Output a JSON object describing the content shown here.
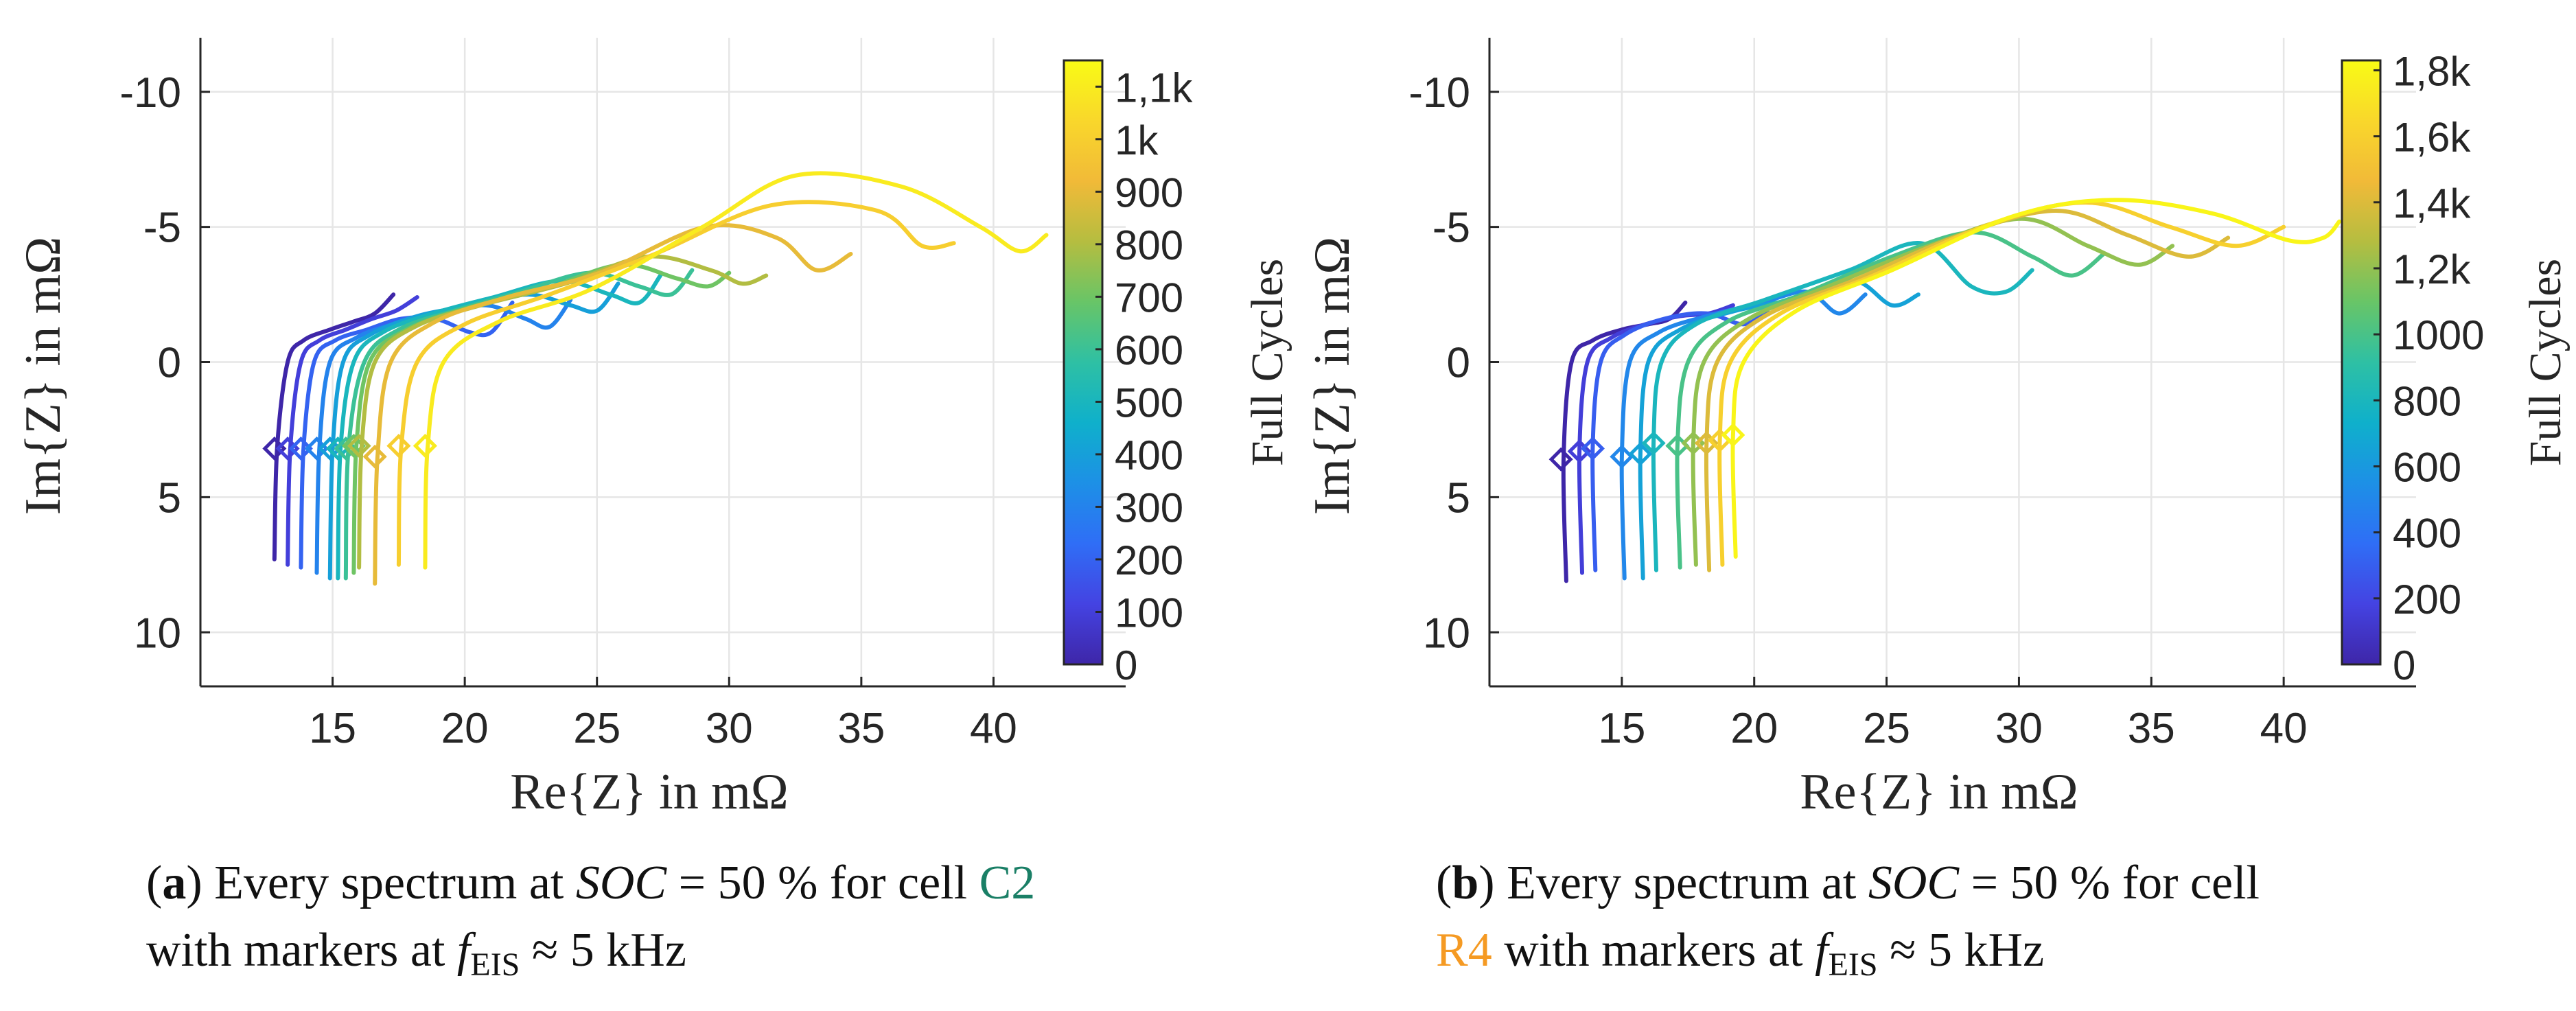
{
  "chart_data": [
    {
      "type": "line",
      "panel_id": "a",
      "xlabel": "Re{Z} in mΩ",
      "ylabel": "Im{Z} in mΩ",
      "xlim": [
        10,
        45
      ],
      "ylim": [
        -12,
        12
      ],
      "y_reversed": true,
      "grid": true,
      "xticks": [
        15,
        20,
        25,
        30,
        35,
        40
      ],
      "yticks": [
        -10,
        -5,
        0,
        5,
        10
      ],
      "xtick_labels": [
        "15",
        "20",
        "25",
        "30",
        "35",
        "40"
      ],
      "ytick_labels": [
        "-10",
        "-5",
        "0",
        "5",
        "10"
      ],
      "colorbar": {
        "label": "Full Cycles",
        "min": 0,
        "max": 1150,
        "ticks": [
          0,
          100,
          200,
          300,
          400,
          500,
          600,
          700,
          800,
          900,
          1000,
          1100
        ],
        "tick_labels": [
          "0",
          "100",
          "200",
          "300",
          "400",
          "500",
          "600",
          "700",
          "800",
          "900",
          "1k",
          "1,1k"
        ]
      },
      "series": [
        {
          "cycles": 0,
          "x": [
            12.8,
            12.9,
            13.3,
            13.9,
            14.9,
            15.8,
            16.6,
            17.3
          ],
          "y": [
            7.3,
            3.2,
            0.0,
            -0.8,
            -1.2,
            -1.5,
            -1.8,
            -2.5
          ],
          "marker": [
            12.8,
            3.2
          ]
        },
        {
          "cycles": 100,
          "x": [
            13.3,
            13.4,
            13.8,
            14.5,
            15.5,
            16.5,
            17.4,
            18.2
          ],
          "y": [
            7.5,
            3.2,
            0.0,
            -0.8,
            -1.2,
            -1.6,
            -1.9,
            -2.4
          ],
          "marker": [
            13.3,
            3.2
          ]
        },
        {
          "cycles": 200,
          "x": [
            13.8,
            13.9,
            14.3,
            15.1,
            16.3,
            17.6,
            18.9,
            20.2,
            21.0,
            21.8
          ],
          "y": [
            7.6,
            3.2,
            0.0,
            -0.8,
            -1.2,
            -1.6,
            -1.6,
            -1.1,
            -1.1,
            -2.2
          ],
          "marker": [
            13.8,
            3.2
          ]
        },
        {
          "cycles": 300,
          "x": [
            14.4,
            14.5,
            14.9,
            15.9,
            17.3,
            19.0,
            20.8,
            22.3,
            23.2,
            24.0
          ],
          "y": [
            7.8,
            3.2,
            0.0,
            -0.9,
            -1.4,
            -1.8,
            -2.1,
            -1.6,
            -1.3,
            -2.3
          ],
          "marker": [
            14.4,
            3.2
          ]
        },
        {
          "cycles": 400,
          "x": [
            14.9,
            15.0,
            15.4,
            16.4,
            18.2,
            20.3,
            22.4,
            24.0,
            25.0,
            25.8
          ],
          "y": [
            8.0,
            3.2,
            0.0,
            -1.0,
            -1.7,
            -2.1,
            -2.5,
            -2.1,
            -1.9,
            -2.9
          ],
          "marker": [
            14.9,
            3.2
          ]
        },
        {
          "cycles": 500,
          "x": [
            15.2,
            15.3,
            15.8,
            16.9,
            18.8,
            21.1,
            23.6,
            25.5,
            26.6,
            27.4
          ],
          "y": [
            8.0,
            3.2,
            0.0,
            -1.1,
            -1.8,
            -2.4,
            -3.0,
            -2.5,
            -2.2,
            -3.2
          ],
          "marker": [
            15.2,
            3.2
          ]
        },
        {
          "cycles": 600,
          "x": [
            15.5,
            15.6,
            16.2,
            17.5,
            19.6,
            22.1,
            24.7,
            26.6,
            27.8,
            28.6
          ],
          "y": [
            8.0,
            3.2,
            0.0,
            -1.2,
            -1.9,
            -2.6,
            -3.3,
            -2.8,
            -2.5,
            -3.4
          ],
          "marker": [
            15.5,
            3.2
          ]
        },
        {
          "cycles": 700,
          "x": [
            15.8,
            15.9,
            16.4,
            17.8,
            20.1,
            23.0,
            25.9,
            28.0,
            29.2,
            30.0
          ],
          "y": [
            7.8,
            3.1,
            0.0,
            -1.2,
            -2.0,
            -2.7,
            -3.6,
            -3.1,
            -2.8,
            -3.3
          ],
          "marker": [
            15.8,
            3.1
          ]
        },
        {
          "cycles": 800,
          "x": [
            16.0,
            16.1,
            16.6,
            18.1,
            20.6,
            23.8,
            26.9,
            29.3,
            30.5,
            31.4
          ],
          "y": [
            7.6,
            3.1,
            0.0,
            -1.3,
            -2.1,
            -2.9,
            -3.9,
            -3.4,
            -2.9,
            -3.2
          ],
          "marker": [
            16.0,
            3.1
          ]
        },
        {
          "cycles": 900,
          "x": [
            16.6,
            16.7,
            17.2,
            18.9,
            21.6,
            25.1,
            29.1,
            31.8,
            33.3,
            34.6
          ],
          "y": [
            8.2,
            3.5,
            0.0,
            -1.5,
            -2.4,
            -3.3,
            -5.0,
            -4.6,
            -3.4,
            -4.0
          ],
          "marker": [
            16.6,
            3.5
          ]
        },
        {
          "cycles": 1000,
          "x": [
            17.5,
            17.6,
            18.2,
            20.0,
            23.2,
            27.2,
            31.6,
            35.6,
            37.3,
            38.5
          ],
          "y": [
            7.5,
            3.1,
            0.0,
            -1.4,
            -2.5,
            -4.0,
            -5.8,
            -5.6,
            -4.3,
            -4.4
          ],
          "marker": [
            17.5,
            3.1
          ]
        },
        {
          "cycles": 1100,
          "x": [
            18.5,
            18.6,
            19.2,
            21.3,
            24.8,
            29.0,
            32.5,
            36.5,
            39.5,
            41.0,
            42.0
          ],
          "y": [
            7.6,
            3.1,
            0.0,
            -1.5,
            -2.7,
            -5.0,
            -6.9,
            -6.5,
            -5.0,
            -4.1,
            -4.7
          ],
          "marker": [
            18.5,
            3.1
          ]
        }
      ]
    },
    {
      "type": "line",
      "panel_id": "b",
      "xlabel": "Re{Z} in mΩ",
      "ylabel": "Im{Z} in mΩ",
      "xlim": [
        10,
        45
      ],
      "ylim": [
        -12,
        12
      ],
      "y_reversed": true,
      "grid": true,
      "xticks": [
        15,
        20,
        25,
        30,
        35,
        40
      ],
      "yticks": [
        -10,
        -5,
        0,
        5,
        10
      ],
      "xtick_labels": [
        "15",
        "20",
        "25",
        "30",
        "35",
        "40"
      ],
      "ytick_labels": [
        "-10",
        "-5",
        "0",
        "5",
        "10"
      ],
      "colorbar": {
        "label": "Full Cycles",
        "min": 0,
        "max": 1830,
        "ticks": [
          0,
          200,
          400,
          600,
          800,
          1000,
          1200,
          1400,
          1600,
          1800
        ],
        "tick_labels": [
          "0",
          "200",
          "400",
          "600",
          "800",
          "1000",
          "1,2k",
          "1,4k",
          "1,6k",
          "1,8k"
        ]
      },
      "series": [
        {
          "cycles": 0,
          "x": [
            12.9,
            12.8,
            13.1,
            13.9,
            15.0,
            16.0,
            16.8,
            17.4
          ],
          "y": [
            8.1,
            3.6,
            0.0,
            -0.8,
            -1.2,
            -1.4,
            -1.6,
            -2.2
          ],
          "marker": [
            12.7,
            3.6
          ]
        },
        {
          "cycles": 150,
          "x": [
            13.5,
            13.4,
            13.7,
            14.6,
            15.9,
            17.2,
            18.3,
            19.2
          ],
          "y": [
            7.8,
            3.3,
            0.0,
            -0.9,
            -1.4,
            -1.7,
            -1.8,
            -2.1
          ],
          "marker": [
            13.4,
            3.3
          ]
        },
        {
          "cycles": 300,
          "x": [
            14.0,
            13.9,
            14.2,
            15.1,
            16.6,
            18.2,
            19.6,
            20.5
          ],
          "y": [
            7.7,
            3.2,
            0.0,
            -1.0,
            -1.6,
            -1.8,
            -1.4,
            -1.9
          ],
          "marker": [
            13.9,
            3.2
          ]
        },
        {
          "cycles": 500,
          "x": [
            15.1,
            15.0,
            15.3,
            16.4,
            18.2,
            20.3,
            22.0,
            23.2,
            24.2
          ],
          "y": [
            8.0,
            3.5,
            0.0,
            -1.1,
            -1.7,
            -2.2,
            -2.6,
            -1.8,
            -2.5
          ],
          "marker": [
            15.0,
            3.5
          ]
        },
        {
          "cycles": 650,
          "x": [
            15.8,
            15.7,
            16.0,
            17.2,
            19.3,
            21.9,
            23.8,
            25.2,
            26.2
          ],
          "y": [
            8.0,
            3.4,
            0.0,
            -1.2,
            -1.9,
            -2.4,
            -3.0,
            -2.1,
            -2.5
          ],
          "marker": [
            15.7,
            3.4
          ]
        },
        {
          "cycles": 800,
          "x": [
            16.3,
            16.2,
            16.5,
            17.8,
            20.4,
            23.6,
            26.3,
            28.2,
            29.5,
            30.5
          ],
          "y": [
            7.7,
            3.0,
            0.0,
            -1.4,
            -2.3,
            -3.4,
            -4.4,
            -2.8,
            -2.6,
            -3.4
          ],
          "marker": [
            16.2,
            3.0
          ]
        },
        {
          "cycles": 1000,
          "x": [
            17.2,
            17.1,
            17.5,
            19.0,
            21.8,
            25.2,
            28.3,
            30.5,
            32.0,
            33.2
          ],
          "y": [
            7.6,
            3.1,
            0.0,
            -1.5,
            -2.5,
            -3.9,
            -4.8,
            -3.9,
            -3.2,
            -4.0
          ],
          "marker": [
            17.1,
            3.1
          ]
        },
        {
          "cycles": 1200,
          "x": [
            17.8,
            17.7,
            18.1,
            19.8,
            22.8,
            26.6,
            30.1,
            32.6,
            34.5,
            35.8
          ],
          "y": [
            7.5,
            3.0,
            0.0,
            -1.6,
            -2.8,
            -4.3,
            -5.3,
            -4.3,
            -3.6,
            -4.3
          ],
          "marker": [
            17.7,
            3.0
          ]
        },
        {
          "cycles": 1400,
          "x": [
            18.3,
            18.2,
            18.6,
            20.4,
            23.7,
            27.8,
            31.4,
            34.1,
            36.4,
            37.9
          ],
          "y": [
            7.7,
            3.0,
            0.0,
            -1.7,
            -3.0,
            -4.7,
            -5.6,
            -4.7,
            -3.9,
            -4.6
          ],
          "marker": [
            18.2,
            3.0
          ]
        },
        {
          "cycles": 1600,
          "x": [
            18.8,
            18.7,
            19.1,
            21.0,
            24.5,
            28.9,
            32.6,
            35.7,
            38.2,
            40.0
          ],
          "y": [
            7.5,
            2.9,
            0.0,
            -1.8,
            -3.2,
            -5.1,
            -5.9,
            -5.0,
            -4.3,
            -5.0
          ],
          "marker": [
            18.7,
            2.9
          ]
        },
        {
          "cycles": 1800,
          "x": [
            19.3,
            19.2,
            19.6,
            21.6,
            25.2,
            29.8,
            33.6,
            37.3,
            40.2,
            41.5,
            42.1
          ],
          "y": [
            7.2,
            2.7,
            0.0,
            -1.9,
            -3.4,
            -5.4,
            -6.0,
            -5.5,
            -4.5,
            -4.6,
            -5.2
          ],
          "marker": [
            19.2,
            2.7
          ]
        }
      ]
    }
  ],
  "captions": {
    "a": {
      "tag": "a",
      "line1_text": " Every spectrum at ",
      "soc_symbol": "SOC",
      "line1_value": " = 50 % for cell ",
      "cell": "C2",
      "line2_text": "with markers at ",
      "f_symbol": "f",
      "f_sub": "EIS",
      "line2_value": " ≈ 5 kHz"
    },
    "b": {
      "tag": "b",
      "line1_text": " Every spectrum at ",
      "soc_symbol": "SOC",
      "line1_value": " = 50 % for cell",
      "cell": "R4",
      "line2_text": " with markers at ",
      "f_symbol": "f",
      "f_sub": "EIS",
      "line2_value": " ≈ 5 kHz"
    }
  },
  "colors": {
    "parula": [
      "#3e26a8",
      "#4443e2",
      "#2f6ef6",
      "#1d90e6",
      "#0fb0cb",
      "#2ec0a4",
      "#68c567",
      "#b5bd40",
      "#f1ba38",
      "#f9d72b",
      "#f9fb15"
    ],
    "axis": "#262626",
    "grid": "#e6e6e6",
    "cell_c2": "#1a7f66",
    "cell_r4": "#f59a23"
  }
}
